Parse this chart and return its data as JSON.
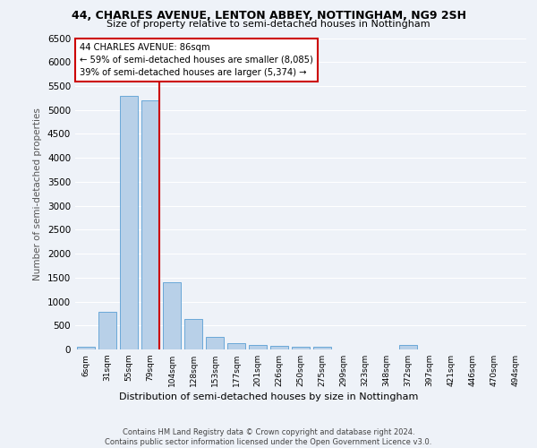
{
  "title1": "44, CHARLES AVENUE, LENTON ABBEY, NOTTINGHAM, NG9 2SH",
  "title2": "Size of property relative to semi-detached houses in Nottingham",
  "xlabel": "Distribution of semi-detached houses by size in Nottingham",
  "ylabel": "Number of semi-detached properties",
  "footnote": "Contains HM Land Registry data © Crown copyright and database right 2024.\nContains public sector information licensed under the Open Government Licence v3.0.",
  "categories": [
    "6sqm",
    "31sqm",
    "55sqm",
    "79sqm",
    "104sqm",
    "128sqm",
    "153sqm",
    "177sqm",
    "201sqm",
    "226sqm",
    "250sqm",
    "275sqm",
    "299sqm",
    "323sqm",
    "348sqm",
    "372sqm",
    "397sqm",
    "421sqm",
    "446sqm",
    "470sqm",
    "494sqm"
  ],
  "values": [
    50,
    790,
    5300,
    5200,
    1410,
    630,
    260,
    135,
    95,
    70,
    55,
    50,
    0,
    0,
    0,
    95,
    0,
    0,
    0,
    0,
    0
  ],
  "bar_color": "#b8d0e8",
  "bar_edge_color": "#5a9fd4",
  "annotation_text": "44 CHARLES AVENUE: 86sqm\n← 59% of semi-detached houses are smaller (8,085)\n39% of semi-detached houses are larger (5,374) →",
  "annotation_box_color": "#ffffff",
  "annotation_box_edge": "#cc0000",
  "vline_color": "#cc0000",
  "ylim": [
    0,
    6500
  ],
  "yticks": [
    0,
    500,
    1000,
    1500,
    2000,
    2500,
    3000,
    3500,
    4000,
    4500,
    5000,
    5500,
    6000,
    6500
  ],
  "bg_color": "#eef2f8",
  "grid_color": "#ffffff",
  "vline_x": 3.43
}
